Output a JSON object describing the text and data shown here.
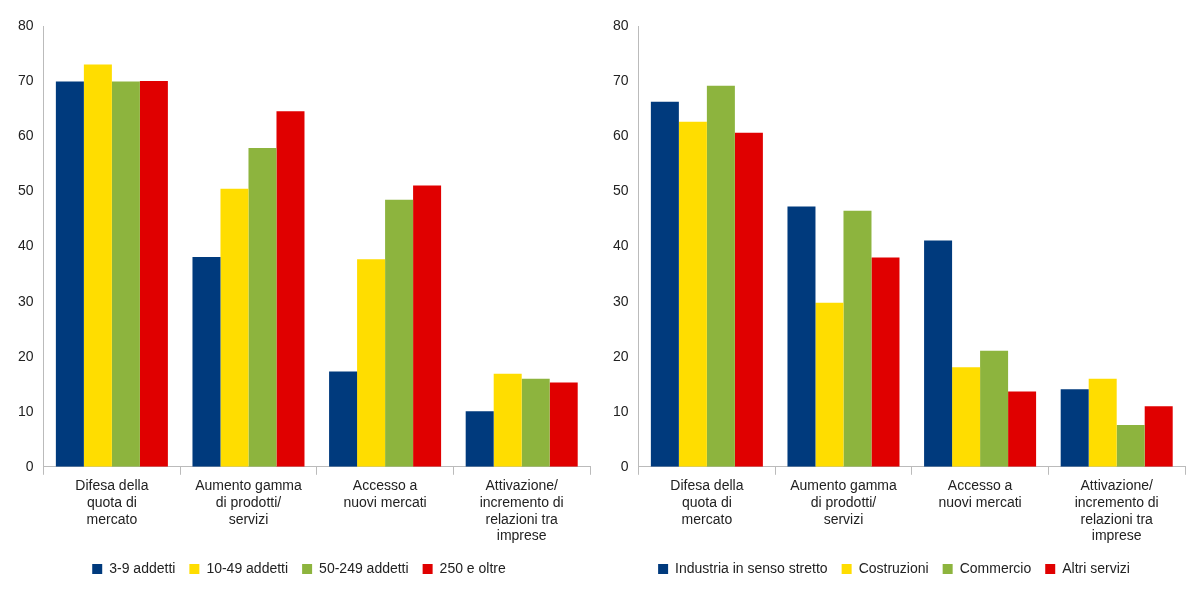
{
  "chart_data": [
    {
      "type": "bar",
      "categories": [
        "Difesa della quota di mercato",
        "Aumento gamma di prodotti/ servizi",
        "Accesso a nuovi mercati",
        "Attivazione/ incremento di relazioni tra imprese"
      ],
      "series": [
        {
          "name": "3-9 addetti",
          "color": "#003a7d",
          "values": [
            70,
            38.1,
            17.3,
            10.1
          ]
        },
        {
          "name": "10-49 addetti",
          "color": "#ffdd00",
          "values": [
            73.1,
            50.5,
            37.7,
            16.9
          ]
        },
        {
          "name": "50-249 addetti",
          "color": "#8db43e",
          "values": [
            70,
            57.9,
            48.5,
            16
          ]
        },
        {
          "name": "250 e oltre",
          "color": "#e00000",
          "values": [
            70.1,
            64.6,
            51.1,
            15.3
          ]
        }
      ],
      "ylim": [
        0,
        80
      ],
      "yticks": [
        0,
        10,
        20,
        30,
        40,
        50,
        60,
        70,
        80
      ],
      "grid": false,
      "legend": "bottom"
    },
    {
      "type": "bar",
      "categories": [
        "Difesa della quota di mercato",
        "Aumento gamma di prodotti/ servizi",
        "Accesso a nuovi mercati",
        "Attivazione/ incremento di relazioni tra imprese"
      ],
      "series": [
        {
          "name": "Industria in senso stretto",
          "color": "#003a7d",
          "values": [
            66.3,
            47.3,
            41.1,
            14.1
          ]
        },
        {
          "name": "Costruzioni",
          "color": "#ffdd00",
          "values": [
            62.7,
            29.8,
            18.1,
            16
          ]
        },
        {
          "name": "Commercio",
          "color": "#8db43e",
          "values": [
            69.2,
            46.5,
            21.1,
            7.6
          ]
        },
        {
          "name": "Altri servizi",
          "color": "#e00000",
          "values": [
            60.7,
            38,
            13.7,
            11
          ]
        }
      ],
      "ylim": [
        0,
        80
      ],
      "yticks": [
        0,
        10,
        20,
        30,
        40,
        50,
        60,
        70,
        80
      ],
      "grid": false,
      "legend": "bottom"
    }
  ]
}
